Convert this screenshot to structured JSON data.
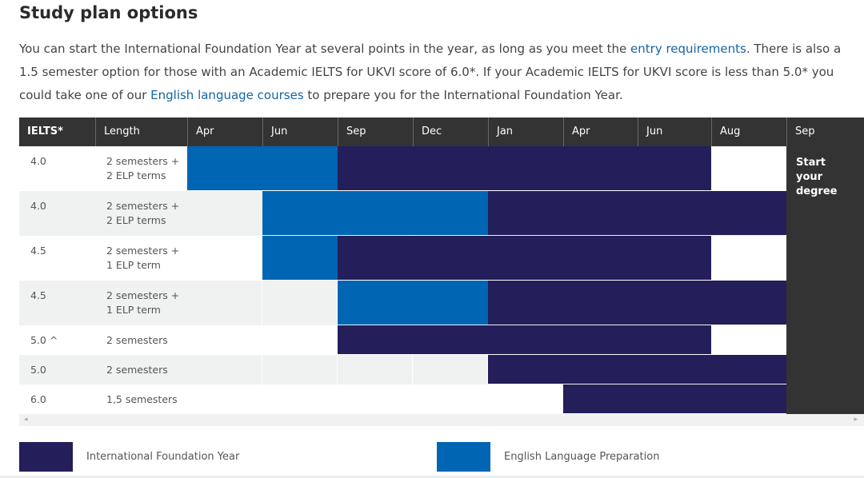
{
  "heading": "Study plan options",
  "intro": {
    "p1": "You can start the International Foundation Year at several points in the year, as long as you meet the ",
    "link1": "entry requirements",
    "p2": ". There is also a 1.5 semester option for those with an Academic IELTS for UKVI score of 6.0*. If your Academic IELTS for UKVI score is less than 5.0* you could take one of our ",
    "link2": "English language courses",
    "p3": " to prepare you for the International Foundation Year."
  },
  "table": {
    "headers": [
      "IELTS*",
      "Length",
      "Apr",
      "Jun",
      "Sep",
      "Dec",
      "Jan",
      "Apr",
      "Jun",
      "Aug",
      "Sep"
    ],
    "final_column_text": "Start your degree",
    "rows": [
      {
        "ielts": "4.0",
        "length": "2 semesters + 2 ELP terms",
        "bars": [
          {
            "kind": "elp",
            "from": 0,
            "to": 2
          },
          {
            "kind": "ifp",
            "from": 2,
            "to": 7
          }
        ]
      },
      {
        "ielts": "4.0",
        "length": "2 semesters + 2 ELP terms",
        "bars": [
          {
            "kind": "elp",
            "from": 1,
            "to": 4
          },
          {
            "kind": "ifp",
            "from": 4,
            "to": 8
          }
        ]
      },
      {
        "ielts": "4.5",
        "length": "2 semesters + 1 ELP term",
        "bars": [
          {
            "kind": "elp",
            "from": 1,
            "to": 2
          },
          {
            "kind": "ifp",
            "from": 2,
            "to": 7
          }
        ]
      },
      {
        "ielts": "4.5",
        "length": "2 semesters + 1 ELP term",
        "bars": [
          {
            "kind": "elp",
            "from": 2,
            "to": 4
          },
          {
            "kind": "ifp",
            "from": 4,
            "to": 8
          }
        ]
      },
      {
        "ielts": "5.0 ^",
        "length": "2 semesters",
        "bars": [
          {
            "kind": "ifp",
            "from": 2,
            "to": 7
          }
        ]
      },
      {
        "ielts": "5.0",
        "length": "2 semesters",
        "bars": [
          {
            "kind": "ifp",
            "from": 4,
            "to": 8
          }
        ]
      },
      {
        "ielts": "6.0",
        "length": "1,5 semesters",
        "bars": [
          {
            "kind": "ifp",
            "from": 5,
            "to": 8
          }
        ]
      }
    ]
  },
  "legend": {
    "ifp_label": "International Foundation Year",
    "elp_label": "English Language Preparation"
  },
  "colors": {
    "ifp": "#241e5a",
    "elp": "#0065b3",
    "header": "#333333",
    "link": "#1465a6"
  },
  "icons": {
    "scroll_left": "scroll-left-arrow-icon",
    "scroll_right": "scroll-right-arrow-icon"
  }
}
